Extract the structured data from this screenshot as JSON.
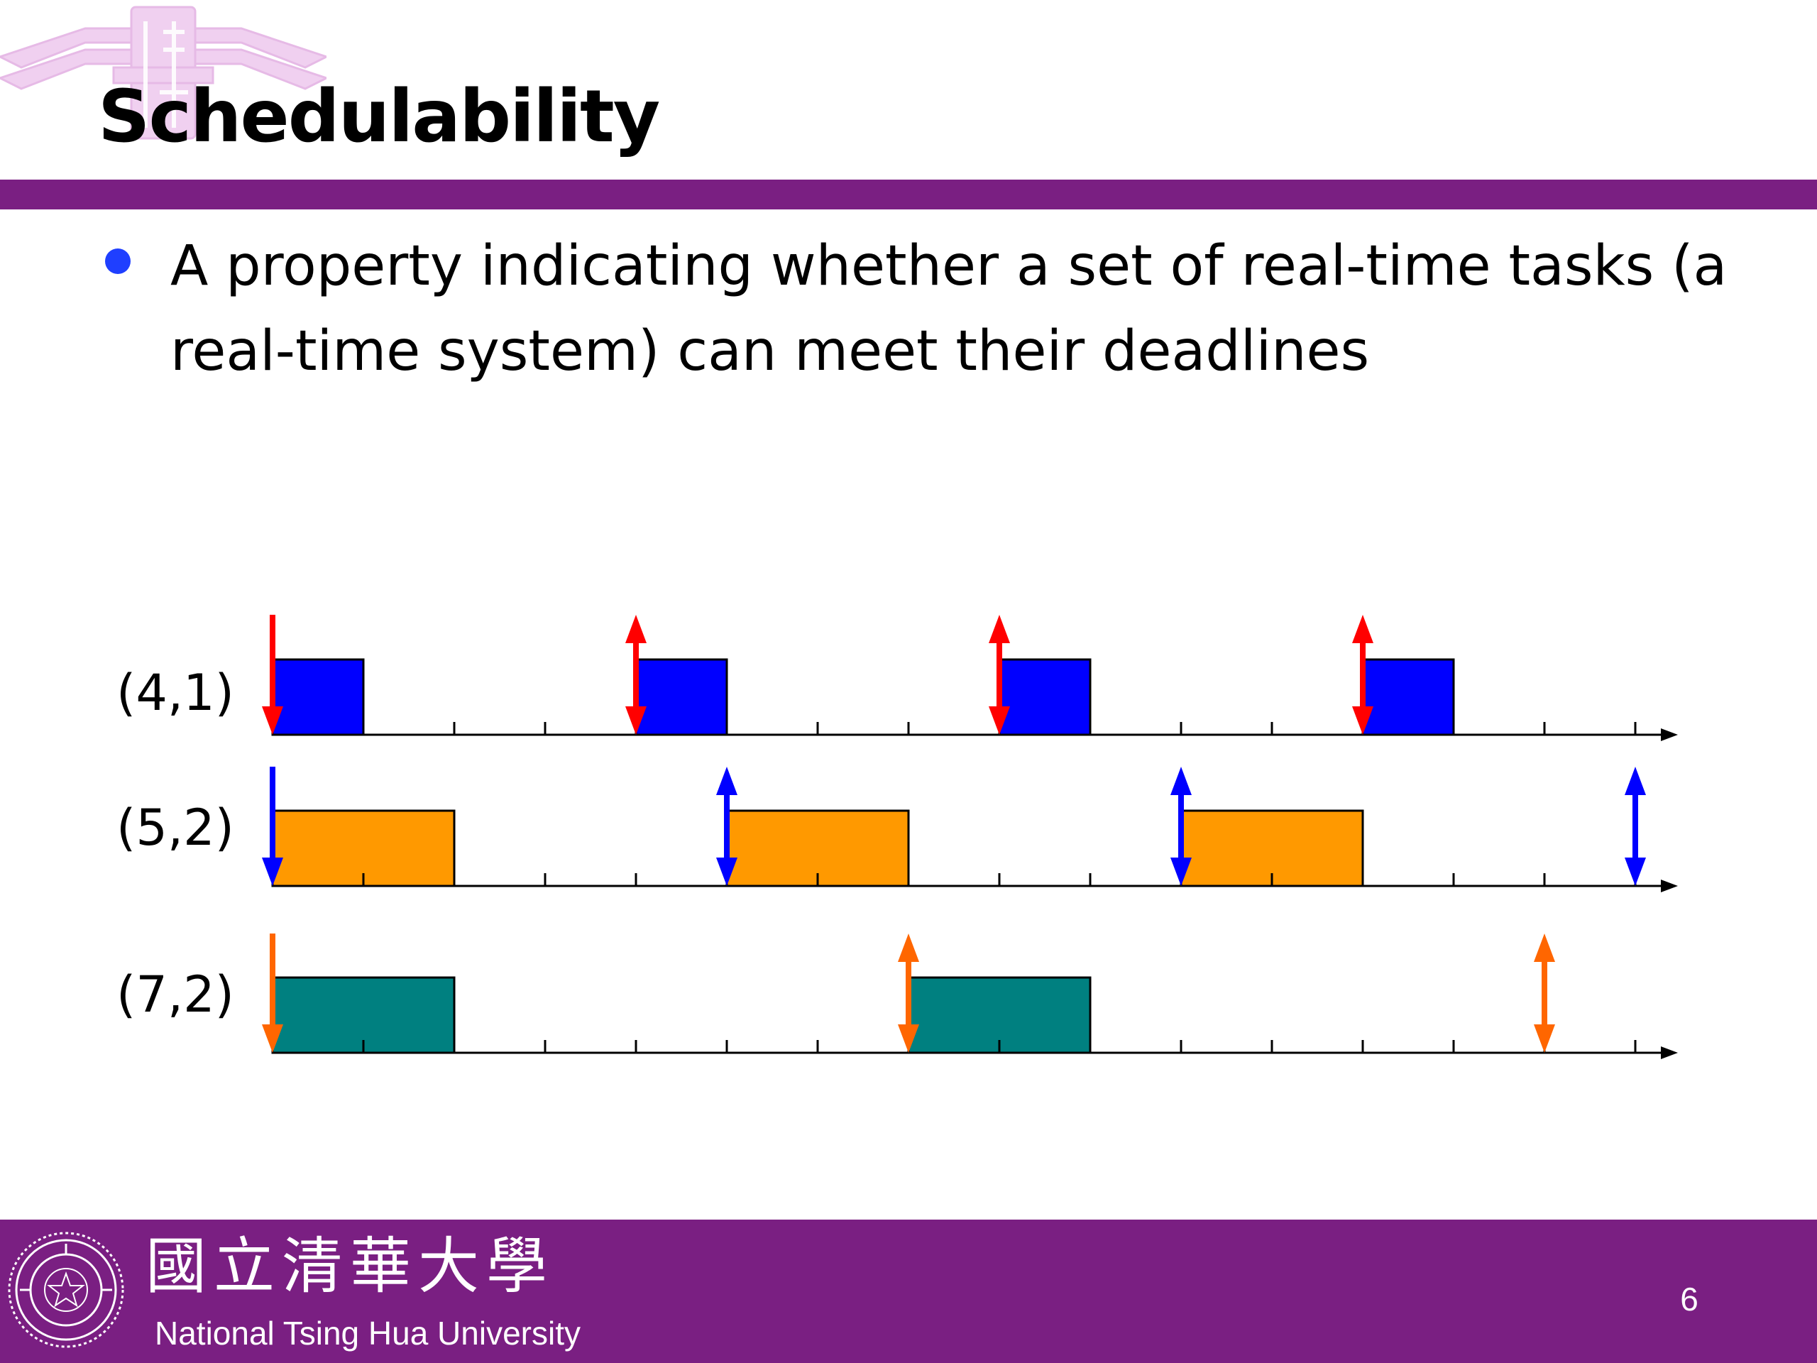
{
  "slide": {
    "title": "Schedulability",
    "bullets": [
      "A property indicating whether a set of real-time tasks (a real-time system) can meet their deadlines"
    ],
    "page_number": "6"
  },
  "footer": {
    "university_chinese": "國立清華大學",
    "university_english": "National Tsing Hua University"
  },
  "colors": {
    "brand_purple": "#7a1f82",
    "bullet_blue": "#1f3fff"
  },
  "icons": {
    "watermark": "nthu-logo-watermark",
    "seal": "nthu-seal-icon"
  },
  "diagram": {
    "time_units": 15,
    "tasks": [
      {
        "label": "(4,1)",
        "period": 4,
        "execution": 1,
        "bar_color": "#0000ff",
        "arrow_color": "#ff0000",
        "jobs": [
          0,
          4,
          8,
          12
        ],
        "arrows": [
          0,
          4,
          8,
          12
        ]
      },
      {
        "label": "(5,2)",
        "period": 5,
        "execution": 2,
        "bar_color": "#ff9900",
        "arrow_color": "#0000ff",
        "jobs": [
          0,
          5,
          10
        ],
        "arrows": [
          0,
          5,
          10,
          15
        ]
      },
      {
        "label": "(7,2)",
        "period": 7,
        "execution": 2,
        "bar_color": "#008080",
        "arrow_color": "#ff6600",
        "jobs": [
          0,
          7
        ],
        "arrows": [
          0,
          7,
          14
        ]
      }
    ]
  }
}
